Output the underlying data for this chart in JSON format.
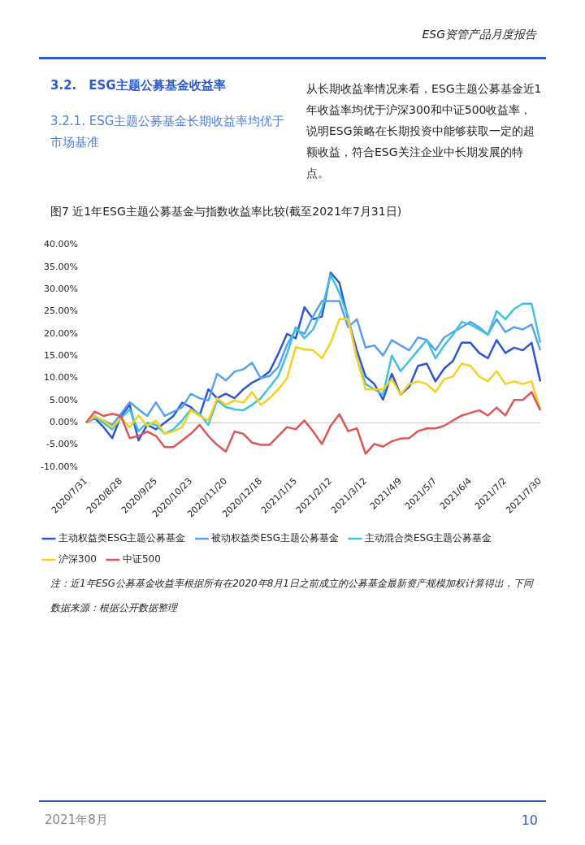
{
  "chart_data": {
    "type": "line",
    "title": "图7 近1年ESG主题公募基金与指数收益率比较(截至2021年7月31日)",
    "categories": [
      "2020/7/31",
      null,
      null,
      null,
      "2020/8/28",
      null,
      null,
      null,
      "2020/9/25",
      null,
      null,
      null,
      "2020/10/23",
      null,
      null,
      null,
      "2020/11/20",
      null,
      null,
      null,
      "2020/12/18",
      null,
      null,
      null,
      "2021/1/15",
      null,
      null,
      null,
      "2021/2/12",
      null,
      null,
      null,
      "2021/3/12",
      null,
      null,
      null,
      "2021/4/9",
      null,
      null,
      null,
      "2021/5/7",
      null,
      null,
      null,
      "2021/6/4",
      null,
      null,
      null,
      "2021/7/2",
      null,
      null,
      null,
      "2021/7/30"
    ],
    "series": [
      {
        "name": "主动权益类ESG主题公募基金",
        "color": "#2e55d6",
        "values": [
          0,
          1,
          -1,
          -3.5,
          1.5,
          4,
          -4,
          -0.5,
          -1.5,
          0,
          1.5,
          4.5,
          3.5,
          1.6,
          7.5,
          5.5,
          6.5,
          5.5,
          7.5,
          9,
          10,
          11.5,
          15.5,
          20,
          19,
          26,
          23.3,
          23.9,
          33.8,
          31.5,
          23.3,
          16.3,
          10.4,
          8.7,
          5.2,
          11,
          6.3,
          8.1,
          12.8,
          13.3,
          9.3,
          12.2,
          13.9,
          18,
          18,
          15.7,
          14.5,
          18.6,
          15.7,
          16.9,
          16.3,
          18,
          9.3
        ]
      },
      {
        "name": "被动权益类ESG主题公募基金",
        "color": "#5aa0f0",
        "values": [
          0,
          1,
          0.5,
          -0.5,
          2,
          4.6,
          3,
          1.5,
          4.6,
          1.5,
          2.5,
          3.5,
          6.5,
          5.5,
          5,
          11,
          9.5,
          11.5,
          12,
          13.5,
          10,
          10.5,
          12.5,
          17.5,
          21,
          20,
          24,
          27.4,
          27.4,
          27.4,
          21.5,
          23.3,
          16.9,
          17.4,
          15.1,
          18.6,
          17.4,
          16.3,
          19.2,
          18.6,
          16.3,
          19.2,
          20.4,
          21.5,
          22.7,
          21.5,
          19.8,
          23.3,
          20.4,
          21.5,
          21,
          22.1,
          16.3
        ]
      },
      {
        "name": "主动混合类ESG主题公募基金",
        "color": "#3cc3e0",
        "values": [
          0,
          1.5,
          0,
          -1.5,
          1,
          3,
          -1.9,
          0,
          -0.5,
          -2.5,
          -1.5,
          0.5,
          3,
          2,
          -0.5,
          5,
          3.5,
          3,
          2.8,
          4,
          5.5,
          8,
          10.5,
          15.5,
          21.5,
          19,
          21,
          25.6,
          33.3,
          29.2,
          23.9,
          14.5,
          8.7,
          7.5,
          6.3,
          15.1,
          11.6,
          13.9,
          16.3,
          18.6,
          14.5,
          17.4,
          19.8,
          22.7,
          22.1,
          21,
          19.8,
          25.1,
          23.3,
          25.6,
          26.8,
          26.8,
          18
        ]
      },
      {
        "name": "沪深300",
        "color": "#f8d020",
        "values": [
          0,
          1.5,
          0.5,
          -1,
          1,
          -1,
          1.6,
          -0.7,
          0.5,
          -2.5,
          -2,
          -1,
          2.8,
          1.5,
          0.5,
          5.5,
          4,
          5,
          4.5,
          6.9,
          4,
          5.5,
          7.5,
          10,
          17,
          16.5,
          16.3,
          14.5,
          18,
          23.3,
          23.3,
          14.5,
          7.5,
          7.5,
          7.5,
          9.8,
          6.3,
          8.7,
          9.3,
          8.7,
          6.9,
          9.8,
          10.4,
          13.3,
          12.8,
          10.4,
          9.3,
          11.6,
          8.7,
          9.3,
          8.7,
          9.3,
          2.8
        ]
      },
      {
        "name": "中证500",
        "color": "#e05555",
        "values": [
          0,
          2.5,
          1.5,
          2,
          1.5,
          -3.5,
          -3,
          -2,
          -3,
          -5.5,
          -5.5,
          -4,
          -2.5,
          -0.5,
          -3,
          -5,
          -6.5,
          -2,
          -2.5,
          -4.5,
          -5,
          -5,
          -3,
          -1,
          -1.5,
          0.5,
          -2,
          -4.8,
          -0.7,
          1.9,
          -1.9,
          -1.3,
          -7,
          -4.8,
          -5.4,
          -4.2,
          -3.6,
          -3.5,
          -1.9,
          -1.3,
          -1.3,
          -0.7,
          0.5,
          1.6,
          2.2,
          2.8,
          1.6,
          3.4,
          1.6,
          5.1,
          5.1,
          6.9,
          2.8
        ]
      }
    ],
    "ylim": [
      -10,
      40
    ],
    "yticks": [
      {
        "value": -10,
        "label": "-10.00%"
      },
      {
        "value": -5,
        "label": "-5.00%"
      },
      {
        "value": 0,
        "label": "0.00%"
      },
      {
        "value": 5,
        "label": "5.00%"
      },
      {
        "value": 10,
        "label": "10.00%"
      },
      {
        "value": 15,
        "label": "15.00%"
      },
      {
        "value": 20,
        "label": "20.00%"
      },
      {
        "value": 25,
        "label": "25.00%"
      },
      {
        "value": 30,
        "label": "30.00%"
      },
      {
        "value": 35,
        "label": "35.00%"
      },
      {
        "value": 40,
        "label": "40.00%"
      }
    ],
    "legend": "bottom",
    "marker": "none",
    "line_style": "solid",
    "annotations": [
      "ESG资管产品月度报告",
      "3.2.　ESG主题公募基金收益率",
      "3.2.1. ESG主题公募基金长期收益率均优于市场基准",
      "从长期收益率情况来看，ESG主题公募基金近1年收益率均优于沪深300和中证500收益率，说明ESG策略在长期投资中能够获取一定的超额收益，符合ESG关注企业中长期发展的特点。",
      "注：近1年ESG公募基金收益率根据所有在2020年8月1日之前成立的公募基金最新资产规模加权计算得出，下同",
      "数据来源：根据公开数据整理",
      "2021年8月",
      "10"
    ]
  }
}
